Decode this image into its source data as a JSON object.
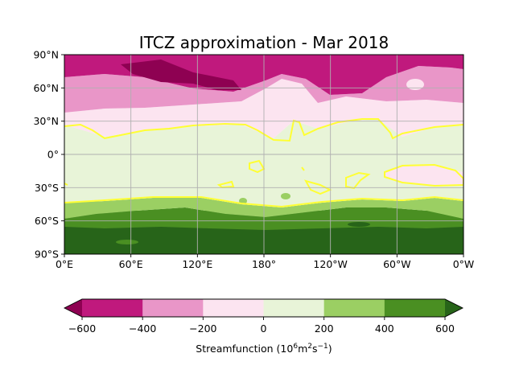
{
  "chart_data": {
    "type": "heatmap",
    "title": "ITCZ approximation - Mar 2018",
    "x_ticks": [
      "0°E",
      "60°E",
      "120°E",
      "180°",
      "120°W",
      "60°W",
      "0°W"
    ],
    "x_tick_values": [
      0,
      60,
      120,
      180,
      240,
      300,
      360
    ],
    "y_ticks": [
      "90°N",
      "60°N",
      "30°N",
      "0°",
      "30°S",
      "60°S",
      "90°S"
    ],
    "y_tick_values": [
      90,
      60,
      30,
      0,
      -30,
      -60,
      -90
    ],
    "xlim": [
      0,
      360
    ],
    "ylim": [
      -90,
      90
    ],
    "grid": true,
    "contour_line": {
      "color": "#ffff33",
      "level": 0
    },
    "colorbar": {
      "label_text": "Streamfunction (10",
      "label_sup1": "6",
      "label_mid": "m",
      "label_sup2": "2",
      "label_s": "s",
      "label_sup3": "−1",
      "label_end": ")",
      "levels": [
        -600,
        -400,
        -200,
        0,
        200,
        400,
        600
      ],
      "tick_labels": [
        "−600",
        "−400",
        "−200",
        "0",
        "200",
        "400",
        "600"
      ],
      "colors": [
        "#c0197d",
        "#e996c8",
        "#fce4f0",
        "#e8f4d8",
        "#9bcf63",
        "#4a8f22"
      ],
      "under_color": "#8e0152",
      "over_color": "#276419",
      "extend": "both"
    }
  }
}
